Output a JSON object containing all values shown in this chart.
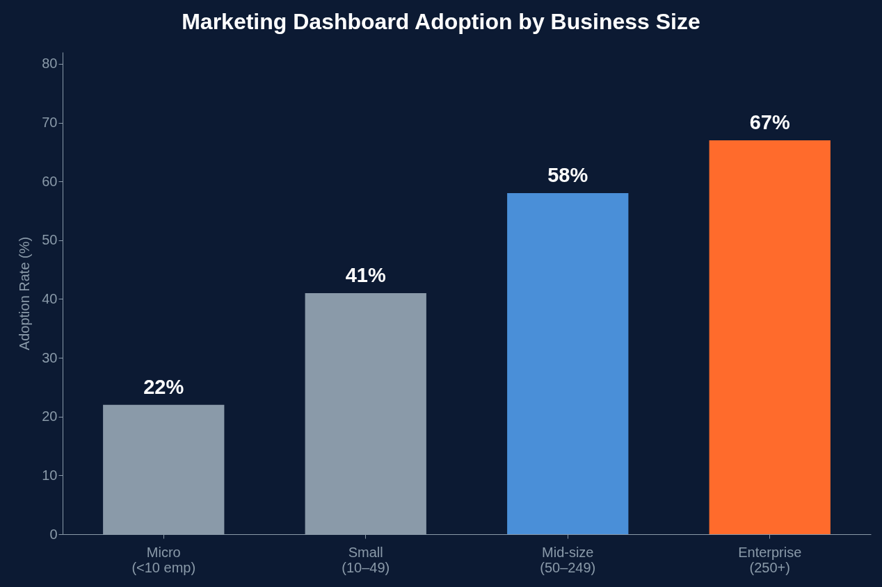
{
  "chart_data": {
    "type": "bar",
    "title": "Marketing Dashboard Adoption by Business Size",
    "ylabel": "Adoption Rate (%)",
    "categories": [
      "Micro\n(<10 emp)",
      "Small\n(10–49)",
      "Mid-size\n(50–249)",
      "Enterprise\n(250+)"
    ],
    "values": [
      22,
      41,
      58,
      67
    ],
    "colors": [
      "#8a9aa9",
      "#8a9aa9",
      "#4a8fd8",
      "#ff6b2c"
    ],
    "value_labels": [
      "22%",
      "41%",
      "58%",
      "67%"
    ],
    "ylim": [
      0,
      82
    ],
    "yticks": [
      0,
      10,
      20,
      30,
      40,
      50,
      60,
      70,
      80
    ],
    "grid": false,
    "legend": false
  }
}
